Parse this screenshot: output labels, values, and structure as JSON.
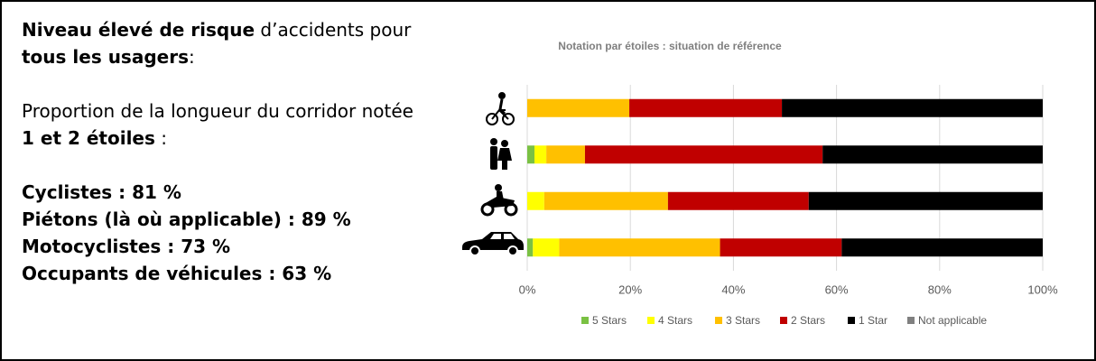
{
  "page": {
    "heading": [
      "Niveau élevé de risque",
      " d’accidents pour",
      "tous les usagers",
      ":"
    ],
    "intro": [
      "Proportion de la longueur du corridor notée",
      "1 et 2  étoiles",
      " :"
    ],
    "stats": [
      "Cyclistes : 81 %",
      "Piétons (là où applicable) : 89 %",
      "Motocyclistes : 73 %",
      "Occupants de véhicules : 63 %"
    ]
  },
  "chart_data": {
    "type": "bar",
    "horizontal": true,
    "stacked": true,
    "grid": true,
    "title": "Notation par étoiles : situation de référence",
    "categories": [
      null,
      null,
      null,
      null
    ],
    "series": [
      {
        "name": "5 Stars",
        "color": "#7ac143",
        "values": [
          0,
          1.4,
          0,
          1.1
        ]
      },
      {
        "name": "4 Stars",
        "color": "#ffff00",
        "values": [
          0,
          2.3,
          3.3,
          5.1
        ]
      },
      {
        "name": "3 Stars",
        "color": "#ffc000",
        "values": [
          19.8,
          7.5,
          24,
          31.2
        ]
      },
      {
        "name": "2 Stars",
        "color": "#c00000",
        "values": [
          29.6,
          46.1,
          27.3,
          23.6
        ]
      },
      {
        "name": "1 Star",
        "color": "#000000",
        "values": [
          50.6,
          42.7,
          45.4,
          39
        ]
      },
      {
        "name": "Not applicable",
        "color": "#808080",
        "values": [
          0,
          0,
          0,
          0
        ]
      }
    ],
    "xlim": [
      0,
      100
    ],
    "xticks": [
      {
        "value": 0,
        "label": "0%"
      },
      {
        "value": 20,
        "label": "20%"
      },
      {
        "value": 40,
        "label": "40%"
      },
      {
        "value": 60,
        "label": "60%"
      },
      {
        "value": 80,
        "label": "80%"
      },
      {
        "value": 100,
        "label": "100%"
      }
    ]
  }
}
